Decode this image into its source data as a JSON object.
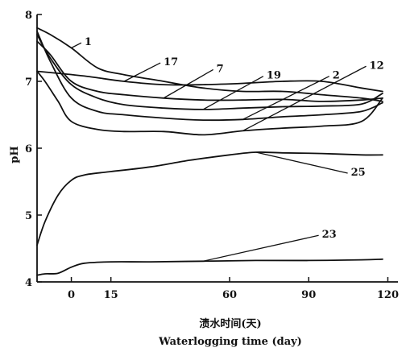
{
  "chart_data": {
    "type": "line",
    "title": "",
    "xlabel_cn": "渍水时间(天)",
    "xlabel_en": "Waterlogging time (day)",
    "ylabel": "pH",
    "xlim": [
      -13,
      122
    ],
    "ylim": [
      4,
      8
    ],
    "xticks": [
      0,
      15,
      60,
      90,
      120
    ],
    "yticks": [
      4,
      5,
      6,
      7,
      8
    ],
    "grid": false,
    "series": [
      {
        "name": "1",
        "label_at": [
          5,
          7.6
        ],
        "x": [
          -13,
          -8,
          0,
          10,
          20,
          35,
          50,
          65,
          80,
          95,
          110,
          118
        ],
        "y": [
          7.8,
          7.7,
          7.5,
          7.2,
          7.1,
          7.0,
          6.9,
          6.85,
          6.85,
          6.8,
          6.75,
          6.7
        ]
      },
      {
        "name": "17",
        "label_at": [
          35,
          7.3
        ],
        "x": [
          -13,
          -5,
          5,
          20,
          35,
          50,
          65,
          80,
          95,
          110,
          118
        ],
        "y": [
          7.15,
          7.12,
          7.08,
          7.0,
          6.95,
          6.95,
          6.97,
          7.0,
          7.0,
          6.9,
          6.85
        ]
      },
      {
        "name": "7",
        "label_at": [
          55,
          7.2
        ],
        "x": [
          -13,
          -8,
          0,
          10,
          20,
          35,
          50,
          65,
          80,
          95,
          110,
          118
        ],
        "y": [
          7.6,
          7.4,
          7.0,
          6.85,
          6.8,
          6.75,
          6.72,
          6.72,
          6.73,
          6.7,
          6.72,
          6.75
        ]
      },
      {
        "name": "19",
        "label_at": [
          74,
          7.1
        ],
        "x": [
          -13,
          -8,
          0,
          10,
          20,
          35,
          50,
          65,
          80,
          95,
          110,
          118
        ],
        "y": [
          7.7,
          7.35,
          6.95,
          6.75,
          6.65,
          6.6,
          6.58,
          6.6,
          6.62,
          6.63,
          6.66,
          6.82
        ]
      },
      {
        "name": "2",
        "label_at": [
          99,
          7.1
        ],
        "x": [
          -13,
          -8,
          0,
          10,
          20,
          35,
          50,
          65,
          80,
          95,
          110,
          118
        ],
        "y": [
          7.75,
          7.3,
          6.75,
          6.55,
          6.5,
          6.45,
          6.42,
          6.43,
          6.47,
          6.5,
          6.55,
          6.68
        ]
      },
      {
        "name": "12",
        "label_at": [
          113,
          7.25
        ],
        "x": [
          -13,
          -10,
          -5,
          0,
          10,
          20,
          35,
          50,
          65,
          80,
          95,
          110,
          118
        ],
        "y": [
          7.15,
          7.0,
          6.7,
          6.4,
          6.28,
          6.25,
          6.25,
          6.2,
          6.26,
          6.3,
          6.33,
          6.4,
          6.75
        ]
      },
      {
        "name": "25",
        "label_at": [
          106,
          5.65
        ],
        "x": [
          -13,
          -10,
          -5,
          0,
          5,
          15,
          30,
          45,
          60,
          70,
          80,
          95,
          110,
          118
        ],
        "y": [
          4.55,
          4.9,
          5.3,
          5.52,
          5.6,
          5.65,
          5.72,
          5.82,
          5.9,
          5.94,
          5.93,
          5.92,
          5.9,
          5.9
        ]
      },
      {
        "name": "23",
        "label_at": [
          95,
          4.72
        ],
        "x": [
          -13,
          -10,
          -5,
          0,
          5,
          15,
          30,
          50,
          70,
          90,
          110,
          118
        ],
        "y": [
          4.1,
          4.12,
          4.13,
          4.22,
          4.28,
          4.3,
          4.3,
          4.31,
          4.32,
          4.32,
          4.33,
          4.34
        ]
      }
    ]
  }
}
